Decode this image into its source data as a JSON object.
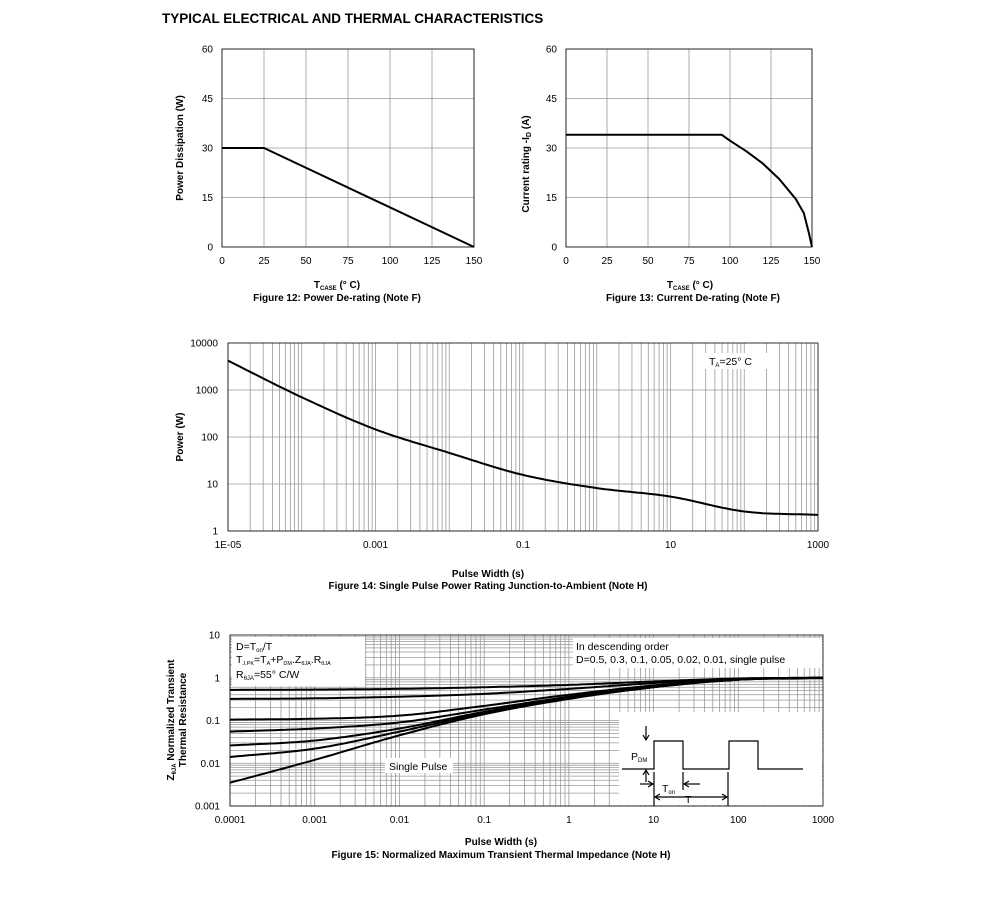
{
  "page_title": "TYPICAL ELECTRICAL AND THERMAL CHARACTERISTICS",
  "chart_data": [
    {
      "id": "fig12",
      "type": "line",
      "caption": "Figure 12: Power De-rating (Note F)",
      "xlabel_main": "T",
      "xlabel_sub": "CASE",
      "xlabel_unit": " (° C)",
      "ylabel": "Power Dissipation (W)",
      "xlim": [
        0,
        150
      ],
      "ylim": [
        0,
        60
      ],
      "xticks": [
        0,
        25,
        50,
        75,
        100,
        125,
        150
      ],
      "yticks": [
        0,
        15,
        30,
        45,
        60
      ],
      "series": [
        {
          "x": [
            0,
            25,
            150
          ],
          "y": [
            30,
            30,
            0
          ]
        }
      ]
    },
    {
      "id": "fig13",
      "type": "line",
      "caption": "Figure 13: Current De-rating (Note F)",
      "xlabel_main": "T",
      "xlabel_sub": "CASE",
      "xlabel_unit": " (° C)",
      "ylabel_main": "Current rating -I",
      "ylabel_sub": "D",
      "ylabel_unit": " (A)",
      "xlim": [
        0,
        150
      ],
      "ylim": [
        0,
        60
      ],
      "xticks": [
        0,
        25,
        50,
        75,
        100,
        125,
        150
      ],
      "yticks": [
        0,
        15,
        30,
        45,
        60
      ],
      "series": [
        {
          "x": [
            0,
            95,
            100,
            110,
            120,
            130,
            140,
            145,
            148,
            150
          ],
          "y": [
            34,
            34,
            32.2,
            29,
            25.3,
            20.6,
            14.6,
            10.3,
            4.5,
            0
          ]
        }
      ]
    },
    {
      "id": "fig14",
      "type": "line",
      "caption": "Figure 14: Single Pulse Power Rating Junction-to-Ambient (Note H)",
      "xlabel": "Pulse Width (s)",
      "ylabel": "Power (W)",
      "xscale": "log",
      "yscale": "log",
      "xlim": [
        1e-05,
        1000
      ],
      "ylim": [
        1,
        10000
      ],
      "xtick_values": [
        1e-05,
        0.001,
        0.1,
        10,
        1000
      ],
      "xtick_labels": [
        "1E-05",
        "0.001",
        "0.1",
        "10",
        "1000"
      ],
      "ytick_values": [
        1,
        10,
        100,
        1000,
        10000
      ],
      "ytick_labels": [
        "1",
        "10",
        "100",
        "1000",
        "10000"
      ],
      "annotation_main": "T",
      "annotation_sub": "A",
      "annotation_rest": "=25° C",
      "series": [
        {
          "x": [
            1e-05,
            0.0001,
            0.001,
            0.01,
            0.1,
            1,
            10,
            100,
            1000
          ],
          "y": [
            4200,
            700,
            145,
            46,
            15.6,
            8.2,
            5.4,
            2.6,
            2.2
          ]
        }
      ]
    },
    {
      "id": "fig15",
      "type": "line",
      "caption": "Figure 15: Normalized Maximum Transient Thermal Impedance (Note H)",
      "xlabel": "Pulse Width (s)",
      "ylabel_line1": "Z",
      "ylabel_sub": "θJA",
      "ylabel_rest": " Normalized Transient",
      "ylabel_line2": "Thermal Resistance",
      "xscale": "log",
      "yscale": "log",
      "xlim": [
        0.0001,
        1000
      ],
      "ylim": [
        0.001,
        10
      ],
      "xtick_values": [
        0.0001,
        0.001,
        0.01,
        0.1,
        1,
        10,
        100,
        1000
      ],
      "xtick_labels": [
        "0.0001",
        "0.001",
        "0.01",
        "0.1",
        "1",
        "10",
        "100",
        "1000"
      ],
      "ytick_values": [
        0.001,
        0.01,
        0.1,
        1,
        10
      ],
      "ytick_labels": [
        "0.001",
        "0.01",
        "0.1",
        "1",
        "10"
      ],
      "legend_lines": [
        "D=Tₒₙ/T",
        "Tⱼ.ₚₖ=Tₐ+Pᴅₘ.Zθⱼₐ.Rθⱼₐ",
        "Rθⱼₐ=55° C/W"
      ],
      "order_note_1": "In descending order",
      "order_note_2": "D=0.5, 0.3, 0.1, 0.05, 0.02, 0.01, single pulse",
      "single_pulse_label": "Single Pulse",
      "inset_pdm": "P",
      "inset_pdm_sub": "DM",
      "inset_ton": "T",
      "inset_ton_sub": "on",
      "inset_t": "T",
      "series": [
        {
          "name": "D=0.5",
          "x": [
            0.0001,
            0.001,
            0.01,
            0.1,
            1,
            10,
            100,
            1000
          ],
          "y": [
            0.52,
            0.53,
            0.55,
            0.6,
            0.68,
            0.82,
            0.96,
            1.0
          ]
        },
        {
          "name": "D=0.3",
          "x": [
            0.0001,
            0.001,
            0.01,
            0.1,
            1,
            10,
            100,
            1000
          ],
          "y": [
            0.32,
            0.33,
            0.36,
            0.42,
            0.55,
            0.75,
            0.95,
            1.0
          ]
        },
        {
          "name": "D=0.1",
          "x": [
            0.0001,
            0.001,
            0.01,
            0.1,
            1,
            10,
            100,
            1000
          ],
          "y": [
            0.105,
            0.11,
            0.13,
            0.22,
            0.4,
            0.66,
            0.93,
            1.0
          ]
        },
        {
          "name": "D=0.05",
          "x": [
            0.0001,
            0.001,
            0.01,
            0.1,
            1,
            10,
            100,
            1000
          ],
          "y": [
            0.055,
            0.065,
            0.09,
            0.18,
            0.36,
            0.63,
            0.92,
            1.0
          ]
        },
        {
          "name": "D=0.02",
          "x": [
            0.0001,
            0.001,
            0.01,
            0.1,
            1,
            10,
            100,
            1000
          ],
          "y": [
            0.026,
            0.034,
            0.065,
            0.16,
            0.34,
            0.61,
            0.91,
            1.0
          ]
        },
        {
          "name": "D=0.01",
          "x": [
            0.0001,
            0.001,
            0.01,
            0.1,
            1,
            10,
            100,
            1000
          ],
          "y": [
            0.014,
            0.022,
            0.055,
            0.15,
            0.33,
            0.6,
            0.9,
            1.0
          ]
        },
        {
          "name": "single pulse",
          "x": [
            0.0001,
            0.001,
            0.01,
            0.1,
            1,
            10,
            100,
            1000
          ],
          "y": [
            0.0035,
            0.012,
            0.045,
            0.14,
            0.32,
            0.6,
            0.9,
            1.0
          ]
        }
      ]
    }
  ]
}
